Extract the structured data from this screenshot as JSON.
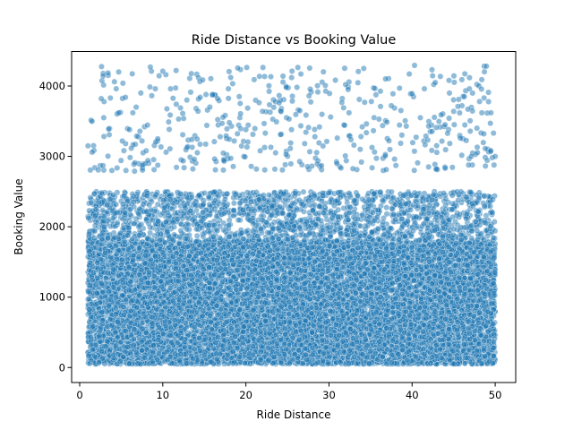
{
  "chart_data": {
    "type": "scatter",
    "title": "Ride Distance vs Booking Value",
    "xlabel": "Ride Distance",
    "ylabel": "Booking Value",
    "xlim": [
      -0.97,
      52.47
    ],
    "ylim": [
      -213,
      4490
    ],
    "xticks": [
      0,
      10,
      20,
      30,
      40,
      50
    ],
    "yticks": [
      0,
      1000,
      2000,
      3000,
      4000
    ],
    "xtick_labels": [
      "0",
      "10",
      "20",
      "30",
      "40",
      "50"
    ],
    "ytick_labels": [
      "0",
      "1000",
      "2000",
      "3000",
      "4000"
    ],
    "grid": false,
    "legend": "none",
    "marker_color": "#1f77b4",
    "marker_alpha": 0.5,
    "series": [
      {
        "distribution": {
          "x_range": [
            1,
            50
          ],
          "dense_band": {
            "y_range": [
              50,
              1800
            ],
            "approx_points": 13000
          },
          "mid_band": {
            "y_range": [
              1800,
              2500
            ],
            "approx_points": 1700
          },
          "sparse_band": {
            "y_range": [
              2800,
              4300
            ],
            "approx_points": 420
          }
        },
        "points": [
          [
            1.0,
            3150
          ],
          [
            1.5,
            3060
          ],
          [
            2.6,
            3820
          ],
          [
            2.9,
            3550
          ],
          [
            2.8,
            2870
          ],
          [
            3.7,
            3830
          ],
          [
            4.4,
            3960
          ],
          [
            4.7,
            4200
          ],
          [
            4.7,
            3620
          ],
          [
            5.2,
            4040
          ],
          [
            5.5,
            3840
          ],
          [
            6.0,
            3380
          ],
          [
            6.4,
            3620
          ],
          [
            6.8,
            3700
          ],
          [
            6.6,
            2790
          ],
          [
            7.5,
            3220
          ],
          [
            8.0,
            3080
          ],
          [
            8.5,
            4270
          ],
          [
            9.1,
            3960
          ],
          [
            9.4,
            3250
          ],
          [
            10.0,
            4210
          ],
          [
            10.4,
            3060
          ],
          [
            11.6,
            4220
          ],
          [
            11.9,
            3530
          ],
          [
            12.4,
            3610
          ],
          [
            12.9,
            3800
          ],
          [
            13.5,
            3240
          ],
          [
            13.8,
            2960
          ],
          [
            14.5,
            3840
          ],
          [
            15.3,
            3440
          ],
          [
            16.0,
            3880
          ],
          [
            16.6,
            3820
          ],
          [
            16.9,
            3280
          ],
          [
            17.9,
            3960
          ],
          [
            18.0,
            3480
          ],
          [
            18.6,
            3220
          ],
          [
            19.2,
            3850
          ],
          [
            20.0,
            3380
          ],
          [
            21.0,
            4090
          ],
          [
            22.0,
            3640
          ],
          [
            23.0,
            3130
          ],
          [
            24.0,
            3760
          ],
          [
            25.5,
            4120
          ],
          [
            25.2,
            3530
          ],
          [
            26.5,
            3650
          ],
          [
            27.6,
            3860
          ],
          [
            28.3,
            3280
          ],
          [
            29.1,
            2870
          ],
          [
            30.2,
            3560
          ],
          [
            31.0,
            3260
          ],
          [
            32.0,
            4020
          ],
          [
            32.3,
            3950
          ],
          [
            33.0,
            3160
          ],
          [
            34.0,
            3420
          ],
          [
            35.1,
            3780
          ],
          [
            36.2,
            3710
          ],
          [
            36.8,
            4100
          ],
          [
            37.5,
            3720
          ],
          [
            38.5,
            3970
          ],
          [
            39.3,
            3430
          ],
          [
            40.0,
            3890
          ],
          [
            41.0,
            3550
          ],
          [
            42.0,
            3430
          ],
          [
            42.8,
            4050
          ],
          [
            43.5,
            3590
          ],
          [
            44.5,
            3900
          ],
          [
            45.0,
            3640
          ],
          [
            46.0,
            4090
          ],
          [
            46.9,
            3960
          ],
          [
            47.8,
            3400
          ],
          [
            48.4,
            3620
          ],
          [
            49.2,
            3910
          ],
          [
            49.8,
            3330
          ],
          [
            50.0,
            3000
          ],
          [
            49.5,
            3620
          ]
        ]
      }
    ]
  }
}
